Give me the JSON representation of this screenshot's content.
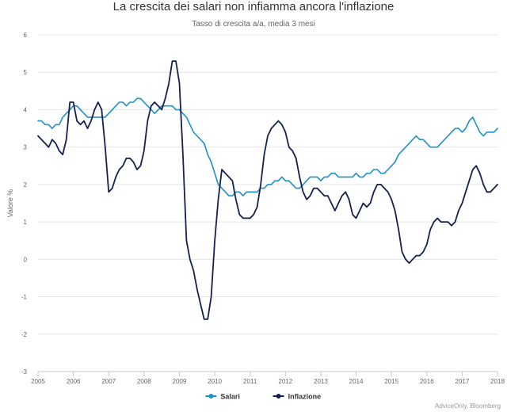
{
  "chart_data": {
    "type": "line",
    "title": "La crescita dei salari non infiamma ancora l'inflazione",
    "subtitle": "Tasso di crescita a/a, media 3 mesi",
    "ylabel": "Valore %",
    "xlabel": "",
    "ylim": [
      -3,
      6
    ],
    "xlim": [
      2005.0,
      2018.0
    ],
    "y_ticks": [
      "-3",
      "-2",
      "-1",
      "0",
      "1",
      "2",
      "3",
      "4",
      "5",
      "6"
    ],
    "x_ticks": [
      "2005",
      "2006",
      "2007",
      "2008",
      "2009",
      "2010",
      "2011",
      "2012",
      "2013",
      "2014",
      "2015",
      "2016",
      "2017",
      "2018"
    ],
    "grid": "horizontal",
    "legend_position": "bottom-center",
    "credits": "AdviceOnly, Bloomberg",
    "series": [
      {
        "name": "Salari",
        "color": "#1f90c8",
        "x": [
          2005.0,
          2005.1,
          2005.2,
          2005.3,
          2005.4,
          2005.5,
          2005.6,
          2005.7,
          2005.8,
          2005.9,
          2006.0,
          2006.1,
          2006.2,
          2006.3,
          2006.4,
          2006.5,
          2006.6,
          2006.7,
          2006.8,
          2006.9,
          2007.0,
          2007.1,
          2007.2,
          2007.3,
          2007.4,
          2007.5,
          2007.6,
          2007.7,
          2007.8,
          2007.9,
          2008.0,
          2008.1,
          2008.2,
          2008.3,
          2008.4,
          2008.5,
          2008.6,
          2008.7,
          2008.8,
          2008.9,
          2009.0,
          2009.1,
          2009.2,
          2009.3,
          2009.4,
          2009.5,
          2009.6,
          2009.7,
          2009.8,
          2009.9,
          2010.0,
          2010.1,
          2010.2,
          2010.3,
          2010.4,
          2010.5,
          2010.6,
          2010.7,
          2010.8,
          2010.9,
          2011.0,
          2011.1,
          2011.2,
          2011.3,
          2011.4,
          2011.5,
          2011.6,
          2011.7,
          2011.8,
          2011.9,
          2012.0,
          2012.1,
          2012.2,
          2012.3,
          2012.4,
          2012.5,
          2012.6,
          2012.7,
          2012.8,
          2012.9,
          2013.0,
          2013.1,
          2013.2,
          2013.3,
          2013.4,
          2013.5,
          2013.6,
          2013.7,
          2013.8,
          2013.9,
          2014.0,
          2014.1,
          2014.2,
          2014.3,
          2014.4,
          2014.5,
          2014.6,
          2014.7,
          2014.8,
          2014.9,
          2015.0,
          2015.1,
          2015.2,
          2015.3,
          2015.4,
          2015.5,
          2015.6,
          2015.7,
          2015.8,
          2015.9,
          2016.0,
          2016.1,
          2016.2,
          2016.3,
          2016.4,
          2016.5,
          2016.6,
          2016.7,
          2016.8,
          2016.9,
          2017.0,
          2017.1,
          2017.2,
          2017.3,
          2017.4,
          2017.5,
          2017.6,
          2017.7,
          2017.8,
          2017.9,
          2018.0
        ],
        "y": [
          3.7,
          3.7,
          3.6,
          3.6,
          3.5,
          3.6,
          3.6,
          3.8,
          3.9,
          4.0,
          4.1,
          4.1,
          4.0,
          3.9,
          3.8,
          3.8,
          3.8,
          3.8,
          3.8,
          3.8,
          3.9,
          4.0,
          4.1,
          4.2,
          4.2,
          4.1,
          4.2,
          4.2,
          4.3,
          4.3,
          4.2,
          4.1,
          4.0,
          3.9,
          4.0,
          4.1,
          4.1,
          4.1,
          4.1,
          4.0,
          4.0,
          3.9,
          3.8,
          3.6,
          3.4,
          3.3,
          3.2,
          3.1,
          2.8,
          2.6,
          2.3,
          2.0,
          1.9,
          1.8,
          1.7,
          1.7,
          1.8,
          1.8,
          1.7,
          1.8,
          1.8,
          1.8,
          1.8,
          1.9,
          1.9,
          2.0,
          2.0,
          2.1,
          2.1,
          2.2,
          2.1,
          2.1,
          2.0,
          1.9,
          1.9,
          2.0,
          2.1,
          2.2,
          2.2,
          2.2,
          2.1,
          2.2,
          2.2,
          2.3,
          2.3,
          2.2,
          2.2,
          2.2,
          2.2,
          2.2,
          2.3,
          2.2,
          2.2,
          2.3,
          2.3,
          2.4,
          2.4,
          2.3,
          2.3,
          2.4,
          2.5,
          2.6,
          2.8,
          2.9,
          3.0,
          3.1,
          3.2,
          3.3,
          3.2,
          3.2,
          3.1,
          3.0,
          3.0,
          3.0,
          3.1,
          3.2,
          3.3,
          3.4,
          3.5,
          3.5,
          3.4,
          3.5,
          3.7,
          3.8,
          3.6,
          3.4,
          3.3,
          3.4,
          3.4,
          3.4,
          3.5
        ],
        "label_position": "legend"
      },
      {
        "name": "Inflazione",
        "color": "#16204f",
        "x": [
          2005.0,
          2005.1,
          2005.2,
          2005.3,
          2005.4,
          2005.5,
          2005.6,
          2005.7,
          2005.8,
          2005.9,
          2006.0,
          2006.1,
          2006.2,
          2006.3,
          2006.4,
          2006.5,
          2006.6,
          2006.7,
          2006.8,
          2006.9,
          2007.0,
          2007.1,
          2007.2,
          2007.3,
          2007.4,
          2007.5,
          2007.6,
          2007.7,
          2007.8,
          2007.9,
          2008.0,
          2008.1,
          2008.2,
          2008.3,
          2008.4,
          2008.5,
          2008.6,
          2008.7,
          2008.8,
          2008.9,
          2009.0,
          2009.1,
          2009.2,
          2009.3,
          2009.4,
          2009.5,
          2009.6,
          2009.7,
          2009.8,
          2009.9,
          2010.0,
          2010.1,
          2010.2,
          2010.3,
          2010.4,
          2010.5,
          2010.6,
          2010.7,
          2010.8,
          2010.9,
          2011.0,
          2011.1,
          2011.2,
          2011.3,
          2011.4,
          2011.5,
          2011.6,
          2011.7,
          2011.8,
          2011.9,
          2012.0,
          2012.1,
          2012.2,
          2012.3,
          2012.4,
          2012.5,
          2012.6,
          2012.7,
          2012.8,
          2012.9,
          2013.0,
          2013.1,
          2013.2,
          2013.3,
          2013.4,
          2013.5,
          2013.6,
          2013.7,
          2013.8,
          2013.9,
          2014.0,
          2014.1,
          2014.2,
          2014.3,
          2014.4,
          2014.5,
          2014.6,
          2014.7,
          2014.8,
          2014.9,
          2015.0,
          2015.1,
          2015.2,
          2015.3,
          2015.4,
          2015.5,
          2015.6,
          2015.7,
          2015.8,
          2015.9,
          2016.0,
          2016.1,
          2016.2,
          2016.3,
          2016.4,
          2016.5,
          2016.6,
          2016.7,
          2016.8,
          2016.9,
          2017.0,
          2017.1,
          2017.2,
          2017.3,
          2017.4,
          2017.5,
          2017.6,
          2017.7,
          2017.8,
          2017.9,
          2018.0
        ],
        "y": [
          3.3,
          3.2,
          3.1,
          3.0,
          3.2,
          3.1,
          2.9,
          2.8,
          3.2,
          4.2,
          4.2,
          3.7,
          3.6,
          3.7,
          3.5,
          3.7,
          4.0,
          4.2,
          4.0,
          3.0,
          1.8,
          1.9,
          2.2,
          2.4,
          2.5,
          2.7,
          2.7,
          2.6,
          2.4,
          2.5,
          2.9,
          3.7,
          4.1,
          4.2,
          4.1,
          4.0,
          4.3,
          4.7,
          5.3,
          5.3,
          4.7,
          2.8,
          0.5,
          0.0,
          -0.3,
          -0.8,
          -1.2,
          -1.6,
          -1.6,
          -1.0,
          0.5,
          1.6,
          2.4,
          2.3,
          2.2,
          2.1,
          1.6,
          1.2,
          1.1,
          1.1,
          1.1,
          1.2,
          1.4,
          2.0,
          2.8,
          3.3,
          3.5,
          3.6,
          3.7,
          3.6,
          3.4,
          3.0,
          2.9,
          2.7,
          2.2,
          1.8,
          1.6,
          1.7,
          1.9,
          1.9,
          1.8,
          1.7,
          1.7,
          1.5,
          1.3,
          1.5,
          1.7,
          1.8,
          1.6,
          1.2,
          1.1,
          1.3,
          1.5,
          1.4,
          1.5,
          1.8,
          2.0,
          2.0,
          1.9,
          1.8,
          1.6,
          1.3,
          0.8,
          0.2,
          0.0,
          -0.1,
          0.0,
          0.1,
          0.1,
          0.2,
          0.4,
          0.8,
          1.0,
          1.1,
          1.0,
          1.0,
          1.0,
          0.9,
          1.0,
          1.3,
          1.5,
          1.8,
          2.1,
          2.4,
          2.5,
          2.3,
          2.0,
          1.8,
          1.8,
          1.9,
          2.0
        ],
        "label_position": "legend"
      }
    ]
  }
}
